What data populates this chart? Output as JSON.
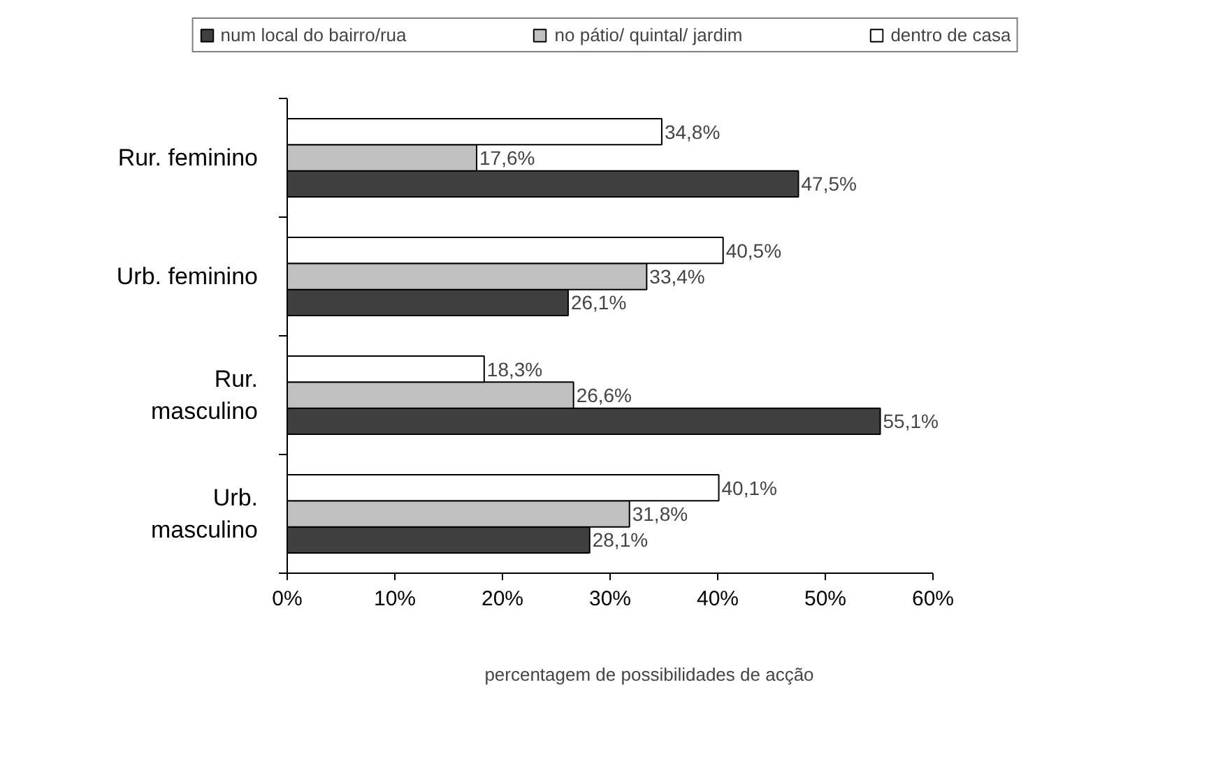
{
  "chart_data": {
    "type": "bar",
    "orientation": "horizontal",
    "xlabel": "percentagem de possibilidades de acção",
    "categories": [
      "Rur. feminino",
      "Urb. feminino",
      "Rur. masculino",
      "Urb. masculino"
    ],
    "series": [
      {
        "name": "num local do bairro/rua",
        "color": "#404040",
        "values": [
          47.5,
          26.1,
          55.1,
          28.1
        ],
        "value_labels": [
          "47,5%",
          "26,1%",
          "55,1%",
          "28,1%"
        ]
      },
      {
        "name": "no pátio/ quintal/ jardim",
        "color": "#c0c0c0",
        "values": [
          17.6,
          33.4,
          26.6,
          31.8
        ],
        "value_labels": [
          "17,6%",
          "33,4%",
          "26,6%",
          "31,8%"
        ]
      },
      {
        "name": "dentro de casa",
        "color": "#ffffff",
        "values": [
          34.8,
          40.5,
          18.3,
          40.1
        ],
        "value_labels": [
          "34,8%",
          "40,5%",
          "18,3%",
          "40,1%"
        ]
      }
    ],
    "xlim": [
      0,
      60
    ],
    "xticks": [
      {
        "value": 0,
        "label": "0%"
      },
      {
        "value": 10,
        "label": "10%"
      },
      {
        "value": 20,
        "label": "20%"
      },
      {
        "value": 30,
        "label": "30%"
      },
      {
        "value": 40,
        "label": "40%"
      },
      {
        "value": 50,
        "label": "50%"
      },
      {
        "value": 60,
        "label": "60%"
      }
    ],
    "legend": "top",
    "grid": false
  }
}
